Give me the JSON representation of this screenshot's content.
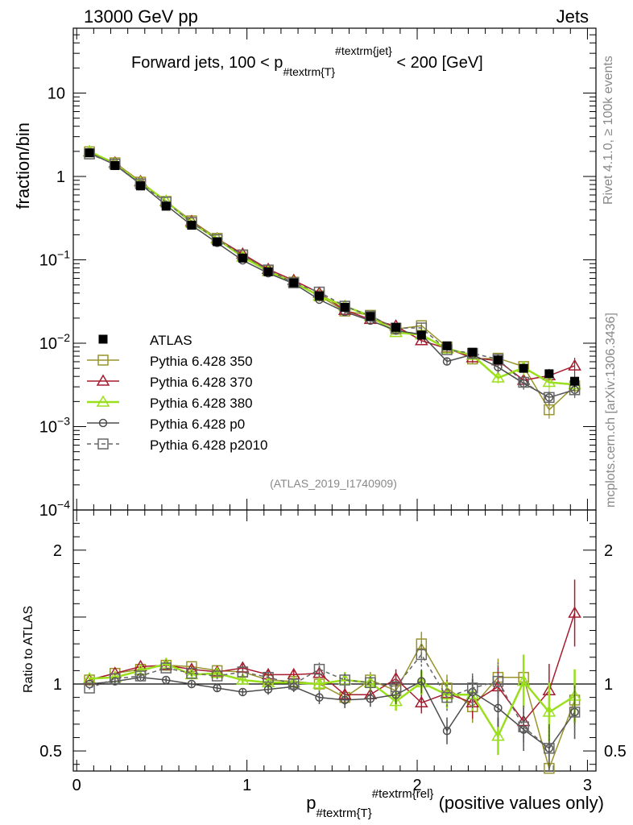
{
  "header": {
    "left": "13000 GeV pp",
    "right": "Jets"
  },
  "side_labels": {
    "rivet": "Rivet 4.1.0, ≥ 100k events",
    "mcplots": "mcplots.cern.ch [arXiv:1306.3436]"
  },
  "chart_data": {
    "type": "line",
    "title_main": "Forward jets, 100 < p",
    "title_sub": "#textrm{T}",
    "title_sup": "#textrm{jet}",
    "title_end": "< 200 [GeV]",
    "watermark": "(ATLAS_2019_I1740909)",
    "ylabel": "fraction/bin",
    "ratio_ylabel": "Ratio to ATLAS",
    "xlabel_main": "p",
    "xlabel_sub": "#textrm{T}",
    "xlabel_sup": "#textrm{rel}",
    "xlabel_end": "(positive values only)",
    "xlim": [
      -0.02,
      3.05
    ],
    "ylim": [
      0.0001,
      60
    ],
    "ratio_ylim": [
      0.35,
      2.3
    ],
    "x_ticks": [
      "0",
      "1",
      "2",
      "3"
    ],
    "y_ticks": [
      {
        "value": 10,
        "base": "10",
        "exp": ""
      },
      {
        "value": 1,
        "base": "1",
        "exp": ""
      },
      {
        "value": 0.1,
        "base": "10",
        "exp": "−1"
      },
      {
        "value": 0.01,
        "base": "10",
        "exp": "−2"
      },
      {
        "value": 0.001,
        "base": "10",
        "exp": "−3"
      },
      {
        "value": 0.0001,
        "base": "10",
        "exp": "−4"
      }
    ],
    "ratio_ticks": [
      {
        "value": 2,
        "label": "2"
      },
      {
        "value": 1,
        "label": "1"
      },
      {
        "value": 0.5,
        "label": "0.5"
      }
    ],
    "x": [
      0.075,
      0.225,
      0.375,
      0.525,
      0.675,
      0.825,
      0.975,
      1.125,
      1.275,
      1.425,
      1.575,
      1.725,
      1.875,
      2.025,
      2.175,
      2.325,
      2.475,
      2.625,
      2.775,
      2.925
    ],
    "data": {
      "name": "ATLAS",
      "color": "#000000",
      "values": [
        1.92,
        1.35,
        0.77,
        0.44,
        0.26,
        0.165,
        0.105,
        0.072,
        0.053,
        0.037,
        0.027,
        0.021,
        0.0155,
        0.0125,
        0.0093,
        0.0078,
        0.0063,
        0.005,
        0.0043,
        0.0035
      ],
      "errors": [
        0.03,
        0.02,
        0.012,
        0.008,
        0.005,
        0.004,
        0.003,
        0.002,
        0.002,
        0.0015,
        0.0012,
        0.001,
        0.0009,
        0.0008,
        0.0006,
        0.0006,
        0.0006,
        0.0005,
        0.0005,
        0.0005
      ]
    },
    "series": [
      {
        "name": "Pythia 6.428 350",
        "color": "#99942b",
        "marker": "square",
        "dashed": false,
        "width": 1.5,
        "ratio": [
          1.03,
          1.08,
          1.11,
          1.14,
          1.13,
          1.1,
          1.09,
          1.03,
          1.02,
          1.0,
          0.9,
          1.03,
          0.95,
          1.3,
          0.97,
          0.83,
          1.05,
          1.05,
          0.37,
          0.88
        ],
        "ratio_err": [
          0.01,
          0.015,
          0.02,
          0.02,
          0.02,
          0.025,
          0.03,
          0.04,
          0.04,
          0.05,
          0.06,
          0.06,
          0.07,
          0.09,
          0.1,
          0.12,
          0.14,
          0.16,
          0.22,
          0.2
        ]
      },
      {
        "name": "Pythia 6.428 370",
        "color": "#a61c2e",
        "marker": "triangle",
        "dashed": false,
        "width": 1.5,
        "ratio": [
          1.03,
          1.08,
          1.13,
          1.14,
          1.11,
          1.09,
          1.12,
          1.07,
          1.07,
          1.08,
          0.92,
          0.92,
          1.04,
          0.86,
          0.93,
          0.86,
          0.98,
          0.72,
          0.95,
          1.53
        ],
        "ratio_err": [
          0.01,
          0.015,
          0.02,
          0.02,
          0.02,
          0.025,
          0.03,
          0.04,
          0.04,
          0.05,
          0.06,
          0.06,
          0.07,
          0.08,
          0.1,
          0.12,
          0.14,
          0.16,
          0.2,
          0.25
        ]
      },
      {
        "name": "Pythia 6.428 380",
        "color": "#9adf1c",
        "marker": "triangle",
        "dashed": false,
        "width": 2.5,
        "ratio": [
          1.04,
          1.05,
          1.1,
          1.15,
          1.07,
          1.08,
          1.03,
          1.01,
          1.01,
          1.0,
          1.03,
          1.01,
          0.87,
          1.01,
          0.92,
          0.92,
          0.61,
          1.02,
          0.79,
          0.91
        ],
        "ratio_err": [
          0.01,
          0.015,
          0.02,
          0.02,
          0.02,
          0.025,
          0.03,
          0.04,
          0.04,
          0.05,
          0.06,
          0.06,
          0.07,
          0.09,
          0.1,
          0.12,
          0.14,
          0.2,
          0.22,
          0.2
        ]
      },
      {
        "name": "Pythia 6.428 p0",
        "color": "#4d4d4d",
        "marker": "circle",
        "dashed": false,
        "width": 1.5,
        "ratio": [
          1.0,
          1.02,
          1.05,
          1.03,
          1.0,
          0.97,
          0.94,
          0.96,
          0.98,
          0.9,
          0.88,
          0.89,
          0.92,
          1.02,
          0.65,
          0.94,
          0.82,
          0.66,
          0.52,
          0.79
        ],
        "ratio_err": [
          0.01,
          0.015,
          0.02,
          0.02,
          0.02,
          0.025,
          0.03,
          0.04,
          0.04,
          0.05,
          0.06,
          0.06,
          0.07,
          0.09,
          0.1,
          0.12,
          0.14,
          0.16,
          0.18,
          0.2
        ]
      },
      {
        "name": "Pythia 6.428 p2010",
        "color": "#666666",
        "marker": "square",
        "dashed": true,
        "width": 1.5,
        "ratio": [
          0.97,
          1.04,
          1.06,
          1.12,
          1.08,
          1.06,
          1.09,
          1.05,
          1.0,
          1.11,
          1.03,
          1.01,
          0.98,
          1.22,
          0.9,
          0.97,
          1.02,
          0.68,
          0.52,
          0.79
        ],
        "ratio_err": [
          0.01,
          0.015,
          0.02,
          0.02,
          0.02,
          0.025,
          0.03,
          0.04,
          0.04,
          0.05,
          0.06,
          0.06,
          0.07,
          0.09,
          0.1,
          0.12,
          0.14,
          0.16,
          0.18,
          0.2
        ]
      }
    ]
  }
}
